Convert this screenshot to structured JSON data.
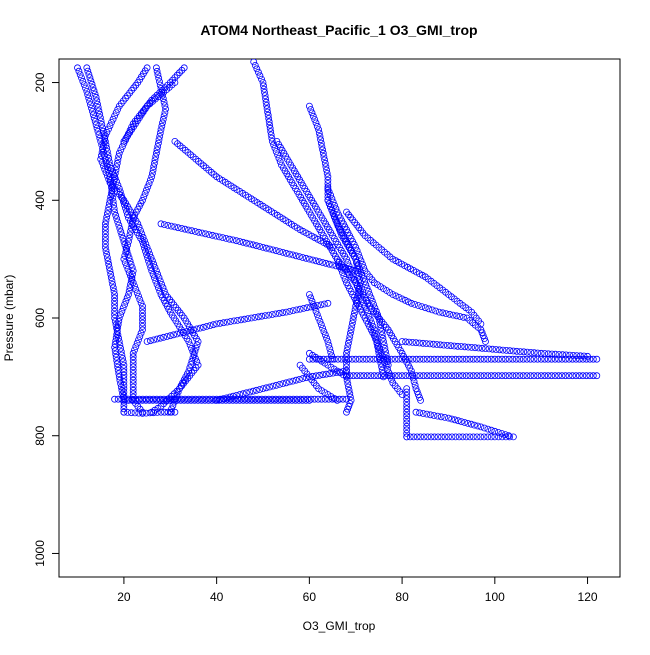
{
  "chart_data": {
    "type": "scatter",
    "title": "ATOM4 Northeast_Pacific_1 O3_GMI_trop",
    "xlabel": "O3_GMI_trop",
    "ylabel": "Pressure (mbar)",
    "xlim": [
      6,
      127
    ],
    "ylim": [
      1040,
      160
    ],
    "y_reversed": true,
    "xticks": [
      20,
      40,
      60,
      80,
      100,
      120
    ],
    "yticks": [
      200,
      400,
      600,
      800,
      1000
    ],
    "grid": false,
    "legend": "none",
    "point_style": "open-circle",
    "colors": {
      "series": "#0000ff",
      "axes": "#000000",
      "background": "#ffffff"
    },
    "series": [
      {
        "segments": [
          [
            [
              10,
              175
            ],
            [
              12,
              215
            ],
            [
              15,
              300
            ],
            [
              17,
              360
            ],
            [
              18,
              420
            ],
            [
              20,
              470
            ],
            [
              22,
              520
            ],
            [
              21,
              560
            ],
            [
              19,
              600
            ],
            [
              18,
              650
            ],
            [
              19,
              700
            ],
            [
              20,
              740
            ]
          ],
          [
            [
              12,
              175
            ],
            [
              14,
              225
            ],
            [
              16,
              300
            ],
            [
              17,
              340
            ],
            [
              19,
              380
            ],
            [
              21,
              430
            ],
            [
              24,
              470
            ],
            [
              26,
              520
            ],
            [
              28,
              560
            ],
            [
              30,
              590
            ],
            [
              34,
              640
            ],
            [
              36,
              680
            ],
            [
              32,
              720
            ],
            [
              28,
              750
            ],
            [
              26,
              760
            ]
          ],
          [
            [
              25,
              175
            ],
            [
              23,
              200
            ],
            [
              19,
              240
            ],
            [
              16,
              290
            ],
            [
              15,
              330
            ],
            [
              17,
              370
            ],
            [
              20,
              400
            ],
            [
              23,
              440
            ],
            [
              25,
              480
            ],
            [
              27,
              520
            ],
            [
              29,
              560
            ],
            [
              33,
              600
            ],
            [
              36,
              640
            ],
            [
              34,
              690
            ],
            [
              32,
              720
            ],
            [
              30,
              760
            ]
          ],
          [
            [
              27,
              175
            ],
            [
              28,
              210
            ],
            [
              29,
              245
            ],
            [
              28,
              280
            ],
            [
              27,
              320
            ],
            [
              26,
              360
            ],
            [
              24,
              400
            ],
            [
              22,
              430
            ],
            [
              21,
              470
            ],
            [
              20,
              500
            ],
            [
              22,
              540
            ],
            [
              24,
              580
            ],
            [
              24,
              620
            ],
            [
              22,
              660
            ],
            [
              22,
              700
            ],
            [
              22,
              740
            ],
            [
              24,
              760
            ]
          ],
          [
            [
              33,
              175
            ],
            [
              30,
              200
            ],
            [
              26,
              230
            ],
            [
              22,
              270
            ],
            [
              19,
              320
            ],
            [
              18,
              360
            ],
            [
              17,
              400
            ],
            [
              16,
              440
            ],
            [
              16,
              480
            ],
            [
              17,
              520
            ],
            [
              18,
              560
            ],
            [
              18,
              600
            ],
            [
              19,
              640
            ],
            [
              20,
              680
            ],
            [
              20,
              720
            ],
            [
              20,
              760
            ]
          ],
          [
            [
              20,
              300
            ],
            [
              25,
              240
            ],
            [
              31,
              200
            ]
          ],
          [
            [
              31,
              300
            ],
            [
              40,
              360
            ],
            [
              50,
              410
            ],
            [
              58,
              450
            ],
            [
              65,
              480
            ]
          ],
          [
            [
              25,
              640
            ],
            [
              40,
              610
            ],
            [
              55,
              590
            ],
            [
              64,
              575
            ]
          ],
          [
            [
              28,
              440
            ],
            [
              45,
              470
            ],
            [
              60,
              500
            ],
            [
              70,
              520
            ]
          ],
          [
            [
              40,
              740
            ],
            [
              50,
              720
            ],
            [
              60,
              700
            ],
            [
              68,
              690
            ]
          ],
          [
            [
              18,
              738
            ],
            [
              40,
              738
            ],
            [
              55,
              738
            ],
            [
              68,
              738
            ]
          ],
          [
            [
              21,
              740
            ],
            [
              30,
              740
            ],
            [
              45,
              740
            ],
            [
              60,
              740
            ]
          ],
          [
            [
              20,
              760
            ],
            [
              24,
              762
            ],
            [
              28,
              760
            ],
            [
              31,
              760
            ]
          ]
        ]
      },
      {
        "segments": [
          [
            [
              48,
              165
            ],
            [
              50,
              200
            ],
            [
              51,
              250
            ],
            [
              52,
              300
            ],
            [
              54,
              340
            ],
            [
              57,
              380
            ],
            [
              60,
              420
            ],
            [
              63,
              460
            ],
            [
              66,
              500
            ],
            [
              68,
              540
            ],
            [
              70,
              570
            ],
            [
              72,
              600
            ],
            [
              74,
              630
            ],
            [
              76,
              670
            ],
            [
              78,
              710
            ],
            [
              80,
              730
            ]
          ],
          [
            [
              53,
              300
            ],
            [
              56,
              340
            ],
            [
              59,
              380
            ],
            [
              62,
              420
            ],
            [
              65,
              460
            ],
            [
              68,
              500
            ],
            [
              70,
              540
            ],
            [
              72,
              580
            ],
            [
              74,
              620
            ],
            [
              75,
              660
            ],
            [
              76,
              700
            ]
          ],
          [
            [
              60,
              240
            ],
            [
              62,
              280
            ],
            [
              63,
              320
            ],
            [
              64,
              360
            ],
            [
              64,
              400
            ],
            [
              66,
              440
            ],
            [
              68,
              470
            ],
            [
              70,
              500
            ],
            [
              71,
              540
            ],
            [
              70,
              580
            ],
            [
              69,
              620
            ],
            [
              68,
              660
            ],
            [
              68,
              700
            ],
            [
              69,
              740
            ],
            [
              68,
              760
            ]
          ],
          [
            [
              64,
              380
            ],
            [
              66,
              420
            ],
            [
              68,
              450
            ],
            [
              70,
              480
            ],
            [
              72,
              520
            ],
            [
              74,
              540
            ],
            [
              78,
              560
            ],
            [
              82,
              575
            ],
            [
              88,
              590
            ],
            [
              94,
              600
            ],
            [
              97,
              620
            ],
            [
              98,
              640
            ]
          ],
          [
            [
              68,
              420
            ],
            [
              72,
              460
            ],
            [
              78,
              500
            ],
            [
              85,
              530
            ],
            [
              90,
              560
            ],
            [
              95,
              590
            ],
            [
              97,
              610
            ]
          ],
          [
            [
              66,
              500
            ],
            [
              70,
              540
            ],
            [
              73,
              580
            ],
            [
              77,
              620
            ],
            [
              80,
              660
            ],
            [
              82,
              690
            ],
            [
              83,
              720
            ],
            [
              84,
              740
            ]
          ],
          [
            [
              60,
              560
            ],
            [
              62,
              600
            ],
            [
              64,
              640
            ],
            [
              65,
              670
            ]
          ],
          [
            [
              60,
              670
            ],
            [
              70,
              670
            ],
            [
              80,
              670
            ],
            [
              90,
              670
            ],
            [
              100,
              670
            ],
            [
              110,
              670
            ],
            [
              122,
              670
            ]
          ],
          [
            [
              80,
              640
            ],
            [
              95,
              650
            ],
            [
              110,
              660
            ],
            [
              120,
              665
            ]
          ],
          [
            [
              68,
              698
            ],
            [
              80,
              698
            ],
            [
              90,
              698
            ],
            [
              100,
              698
            ],
            [
              110,
              698
            ],
            [
              122,
              698
            ]
          ],
          [
            [
              66,
              740
            ],
            [
              62,
              720
            ],
            [
              60,
              700
            ],
            [
              58,
              680
            ]
          ],
          [
            [
              81,
              720
            ],
            [
              81,
              760
            ],
            [
              81,
              802
            ]
          ],
          [
            [
              81,
              802
            ],
            [
              90,
              802
            ],
            [
              100,
              802
            ],
            [
              104,
              802
            ]
          ],
          [
            [
              83,
              760
            ],
            [
              90,
              770
            ],
            [
              97,
              785
            ],
            [
              103,
              800
            ]
          ],
          [
            [
              60,
              660
            ],
            [
              64,
              680
            ],
            [
              68,
              700
            ]
          ],
          [
            [
              64,
              400
            ],
            [
              67,
              460
            ],
            [
              70,
              500
            ],
            [
              73,
              560
            ],
            [
              75,
              600
            ],
            [
              76,
              640
            ],
            [
              77,
              680
            ]
          ]
        ]
      }
    ]
  }
}
